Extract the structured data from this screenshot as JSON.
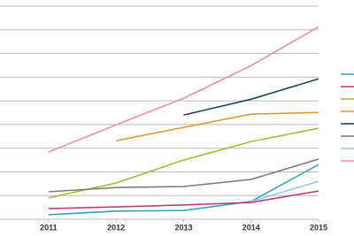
{
  "chart_data": {
    "type": "line",
    "x": [
      2011,
      2012,
      2013,
      2014,
      2015
    ],
    "xlim": [
      2010.28,
      2015
    ],
    "xticks": [
      2011,
      2012,
      2013,
      2014,
      2015
    ],
    "ylim": [
      0,
      9
    ],
    "yticks": [
      0,
      1,
      2,
      3,
      4,
      5,
      6,
      7,
      8,
      9
    ],
    "grid": true,
    "legend": "right",
    "series": [
      {
        "color": "#2a9fbf",
        "values": [
          0.19,
          0.34,
          0.37,
          0.75,
          2.31
        ]
      },
      {
        "color": "#c0307a",
        "values": [
          0.45,
          0.52,
          0.6,
          0.71,
          1.19
        ]
      },
      {
        "color": "#9bbb28",
        "values": [
          0.9,
          1.53,
          2.5,
          3.28,
          3.84
        ]
      },
      {
        "color": "#e0952a",
        "values": [
          null,
          3.32,
          3.88,
          4.44,
          4.51
        ]
      },
      {
        "color": "#0b3a5e",
        "values": [
          null,
          null,
          4.4,
          5.07,
          5.93
        ]
      },
      {
        "color": "#777777",
        "values": [
          1.16,
          1.34,
          1.38,
          1.68,
          2.54
        ]
      },
      {
        "color": "#9ec4e0",
        "values": [
          null,
          null,
          null,
          0.75,
          1.6
        ]
      },
      {
        "color": "#f08aa0",
        "values": [
          2.84,
          3.99,
          5.11,
          6.49,
          8.13
        ]
      }
    ]
  }
}
